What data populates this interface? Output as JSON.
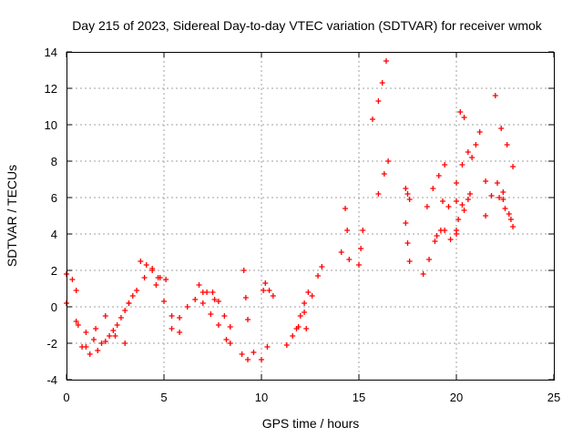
{
  "chart_data": {
    "type": "scatter",
    "title": "Day 215 of 2023, Sidereal Day-to-day VTEC variation (SDTVAR) for receiver wmok",
    "xlabel": "GPS time / hours",
    "ylabel": "SDTVAR / TECUs",
    "xlim": [
      0,
      25
    ],
    "ylim": [
      -4,
      14
    ],
    "x_ticks": [
      "0",
      "5",
      "10",
      "15",
      "20",
      "25"
    ],
    "y_ticks": [
      "-4",
      "-2",
      "0",
      "2",
      "4",
      "6",
      "8",
      "10",
      "12",
      "14"
    ],
    "grid": true,
    "marker": "plus",
    "color": "#ff0000",
    "segments": [
      {
        "x": [
          0.0,
          0.3,
          0.5
        ],
        "y": [
          1.8,
          1.5,
          0.9
        ]
      },
      {
        "x": [
          0.0,
          0.5,
          0.8,
          1.2,
          1.6
        ],
        "y": [
          0.2,
          -0.8,
          -2.2,
          -2.6,
          -2.4
        ]
      },
      {
        "x": [
          0.6,
          1.0,
          1.4,
          1.8,
          2.2,
          2.6,
          3.0,
          3.4
        ],
        "y": [
          -1.0,
          -1.4,
          -1.8,
          -2.0,
          -1.6,
          -1.0,
          -0.2,
          0.6
        ]
      },
      {
        "x": [
          1.0,
          1.5,
          2.0,
          2.5,
          3.0
        ],
        "y": [
          -2.2,
          -1.2,
          -0.5,
          -1.6,
          -2.0
        ]
      },
      {
        "x": [
          2.0,
          2.4,
          2.8,
          3.2
        ],
        "y": [
          -1.9,
          -1.3,
          -0.6,
          0.2
        ]
      },
      {
        "x": [
          3.2,
          3.6,
          4.0,
          4.4,
          4.8
        ],
        "y": [
          0.2,
          0.9,
          1.6,
          2.1,
          1.6
        ]
      },
      {
        "x": [
          3.8,
          4.1,
          4.4,
          4.7,
          5.1
        ],
        "y": [
          2.5,
          2.3,
          2.0,
          1.6,
          1.5
        ]
      },
      {
        "x": [
          4.6,
          5.0,
          5.4,
          5.8
        ],
        "y": [
          1.2,
          0.3,
          -0.5,
          -1.4
        ]
      },
      {
        "x": [
          5.4,
          5.8,
          6.2,
          6.6,
          7.0
        ],
        "y": [
          -1.2,
          -0.6,
          0.0,
          0.4,
          0.8
        ]
      },
      {
        "x": [
          6.8,
          7.2,
          7.6
        ],
        "y": [
          1.2,
          0.8,
          0.4
        ]
      },
      {
        "x": [
          7.0,
          7.4,
          7.8,
          8.2,
          8.4
        ],
        "y": [
          0.2,
          -0.4,
          -1.0,
          -1.8,
          -2.0
        ]
      },
      {
        "x": [
          7.5,
          7.8,
          8.1,
          8.4
        ],
        "y": [
          0.8,
          0.3,
          -0.5,
          -1.1
        ]
      },
      {
        "x": [
          9.1,
          9.2,
          9.3
        ],
        "y": [
          2.0,
          0.5,
          -0.7
        ]
      },
      {
        "x": [
          9.0,
          9.3,
          9.6,
          10.0,
          10.3
        ],
        "y": [
          -2.6,
          -2.9,
          -2.5,
          -2.9,
          -2.2
        ]
      },
      {
        "x": [
          10.1,
          10.2,
          10.4,
          10.6
        ],
        "y": [
          0.9,
          1.3,
          0.9,
          0.6
        ]
      },
      {
        "x": [
          11.3,
          11.6,
          11.9,
          12.2,
          12.4
        ],
        "y": [
          -2.1,
          -1.6,
          -1.1,
          -0.3,
          0.8
        ]
      },
      {
        "x": [
          11.8,
          12.0,
          12.2
        ],
        "y": [
          -1.2,
          -0.5,
          0.2
        ]
      },
      {
        "x": [
          12.3,
          12.6,
          12.9,
          13.1
        ],
        "y": [
          -1.2,
          0.6,
          1.7,
          2.2
        ]
      },
      {
        "x": [
          14.1,
          14.3,
          14.4,
          14.5
        ],
        "y": [
          3.0,
          5.4,
          4.2,
          2.6
        ]
      },
      {
        "x": [
          15.0,
          15.1,
          15.2
        ],
        "y": [
          2.3,
          3.2,
          4.2
        ]
      },
      {
        "x": [
          15.7,
          16.0,
          16.2,
          16.4
        ],
        "y": [
          10.3,
          11.3,
          12.3,
          13.5
        ]
      },
      {
        "x": [
          16.0,
          16.3,
          16.5
        ],
        "y": [
          6.2,
          7.3,
          8.0
        ]
      },
      {
        "x": [
          17.4,
          17.5,
          17.6
        ],
        "y": [
          6.5,
          6.2,
          5.9
        ]
      },
      {
        "x": [
          17.4,
          17.5,
          17.6
        ],
        "y": [
          4.6,
          3.5,
          2.5
        ]
      },
      {
        "x": [
          18.3,
          18.6,
          18.9,
          19.2
        ],
        "y": [
          1.8,
          2.6,
          3.6,
          4.2
        ]
      },
      {
        "x": [
          18.5,
          18.8,
          19.1,
          19.4
        ],
        "y": [
          5.5,
          6.5,
          7.2,
          7.8
        ]
      },
      {
        "x": [
          19.0,
          19.4,
          19.7,
          20.0
        ],
        "y": [
          3.9,
          4.2,
          3.7,
          4.2
        ]
      },
      {
        "x": [
          19.3,
          19.6,
          20.0
        ],
        "y": [
          5.8,
          5.5,
          4.0
        ]
      },
      {
        "x": [
          20.0,
          20.3,
          20.6
        ],
        "y": [
          5.8,
          5.6,
          5.9
        ]
      },
      {
        "x": [
          20.1,
          20.4,
          20.7
        ],
        "y": [
          4.8,
          5.3,
          6.2
        ]
      },
      {
        "x": [
          20.0,
          20.3,
          20.6
        ],
        "y": [
          6.8,
          7.8,
          8.5
        ]
      },
      {
        "x": [
          20.2,
          20.4
        ],
        "y": [
          10.7,
          10.4
        ]
      },
      {
        "x": [
          20.8,
          21.0,
          21.2,
          21.5
        ],
        "y": [
          8.2,
          8.9,
          9.6,
          6.9
        ]
      },
      {
        "x": [
          21.5,
          21.8,
          22.1,
          22.4
        ],
        "y": [
          5.0,
          6.1,
          6.8,
          6.3
        ]
      },
      {
        "x": [
          22.0,
          22.3,
          22.6,
          22.9
        ],
        "y": [
          11.6,
          9.8,
          8.9,
          7.7
        ]
      },
      {
        "x": [
          22.2,
          22.5,
          22.8
        ],
        "y": [
          6.0,
          5.4,
          4.8
        ]
      },
      {
        "x": [
          22.4,
          22.7,
          22.9
        ],
        "y": [
          5.9,
          5.1,
          4.4
        ]
      }
    ]
  }
}
